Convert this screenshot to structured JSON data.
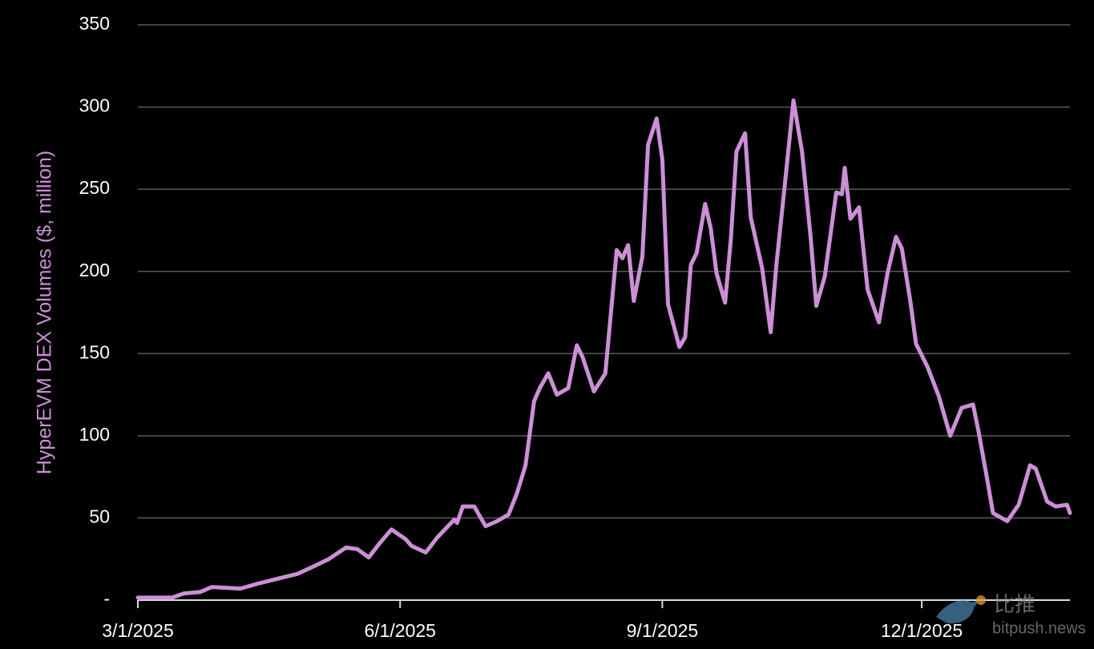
{
  "chart_data": {
    "type": "line",
    "y_label": "HyperEVM DEX Volumes ($, million)",
    "x": [
      "3/1/2025",
      "3/13/2025",
      "3/17/2025",
      "3/23/2025",
      "3/27/2025",
      "4/6/2025",
      "4/12/2025",
      "4/19/2025",
      "4/26/2025",
      "5/1/2025",
      "5/7/2025",
      "5/13/2025",
      "5/17/2025",
      "5/21/2025",
      "5/25/2025",
      "5/29/2025",
      "6/3/2025",
      "6/5/2025",
      "6/10/2025",
      "6/14/2025",
      "6/20/2025",
      "6/21/2025",
      "6/23/2025",
      "6/27/2025",
      "7/1/2025",
      "7/5/2025",
      "7/9/2025",
      "7/12/2025",
      "7/15/2025",
      "7/18/2025",
      "7/20/2025",
      "7/23/2025",
      "7/26/2025",
      "7/30/2025",
      "8/2/2025",
      "8/4/2025",
      "8/8/2025",
      "8/12/2025",
      "8/16/2025",
      "8/18/2025",
      "8/20/2025",
      "8/22/2025",
      "8/25/2025",
      "8/27/2025",
      "8/30/2025",
      "9/1/2025",
      "9/3/2025",
      "9/7/2025",
      "9/9/2025",
      "9/11/2025",
      "9/13/2025",
      "9/16/2025",
      "9/18/2025",
      "9/20/2025",
      "9/23/2025",
      "9/25/2025",
      "9/27/2025",
      "9/30/2025",
      "10/2/2025",
      "10/6/2025",
      "10/9/2025",
      "10/11/2025",
      "10/14/2025",
      "10/17/2025",
      "10/20/2025",
      "10/23/2025",
      "10/25/2025",
      "10/28/2025",
      "11/1/2025",
      "11/3/2025",
      "11/4/2025",
      "11/6/2025",
      "11/9/2025",
      "11/12/2025",
      "11/16/2025",
      "11/19/2025",
      "11/22/2025",
      "11/24/2025",
      "11/27/2025",
      "11/29/2025",
      "12/3/2025",
      "12/7/2025",
      "12/11/2025",
      "12/15/2025",
      "12/19/2025",
      "12/21/2025",
      "12/24/2025",
      "12/26/2025",
      "12/31/2025",
      "1/4/2026",
      "1/8/2026",
      "1/10/2026",
      "1/14/2026",
      "1/17/2026",
      "1/21/2026",
      "1/22/2026"
    ],
    "series": [
      {
        "name": "HyperEVM DEX Volumes",
        "color": "#cc8fd6",
        "values": [
          1.5,
          1.5,
          4,
          5,
          8,
          7,
          10,
          13,
          16,
          20,
          25,
          32,
          31,
          26,
          35,
          43,
          37,
          33,
          29,
          38,
          49,
          47,
          57,
          57,
          45,
          48,
          52,
          65,
          82,
          121,
          129,
          138,
          125,
          129,
          155,
          148,
          127,
          138,
          213,
          208,
          216,
          182,
          209,
          277,
          293,
          268,
          180,
          154,
          160,
          204,
          211,
          241,
          226,
          199,
          181,
          219,
          273,
          284,
          233,
          202,
          163,
          204,
          253,
          304,
          273,
          221,
          179,
          197,
          248,
          247,
          263,
          232,
          239,
          189,
          169,
          199,
          221,
          214,
          182,
          156,
          142,
          124,
          100,
          117,
          119,
          102,
          73,
          53,
          48,
          58,
          82,
          80,
          60,
          57,
          58,
          53
        ]
      }
    ],
    "xlim": [
      "3/1/2025",
      "1/22/2026"
    ],
    "xticks": [
      "3/1/2025",
      "6/1/2025",
      "9/1/2025",
      "12/1/2025"
    ],
    "ylim": [
      0,
      350
    ],
    "yticks": [
      {
        "value": 0,
        "label": "-"
      },
      50,
      100,
      150,
      200,
      250,
      300,
      350
    ],
    "grid": true
  },
  "watermark": {
    "brand": "比推",
    "site": "bitpush.news"
  }
}
